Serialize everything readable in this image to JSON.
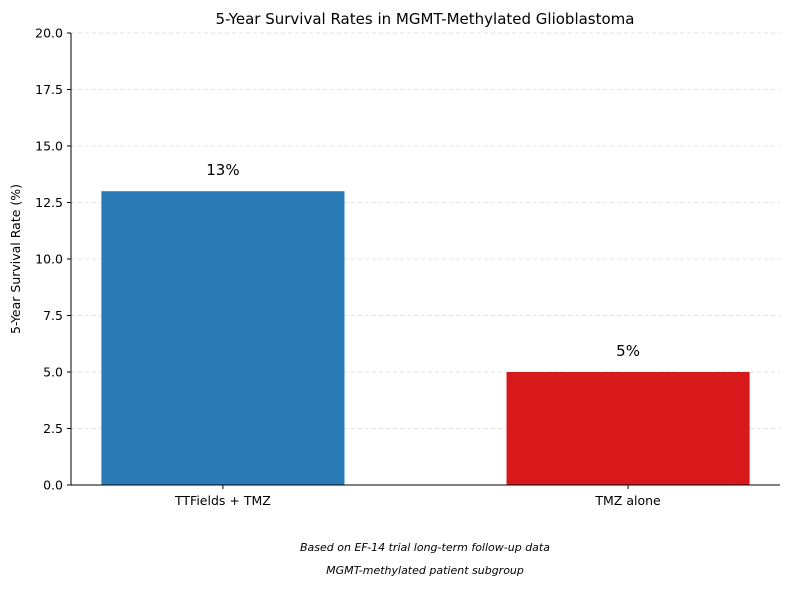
{
  "chart_data": {
    "type": "bar",
    "title": "5-Year Survival Rates in MGMT-Methylated Glioblastoma",
    "xlabel": "",
    "ylabel": "5-Year Survival Rate (%)",
    "categories": [
      "TTFields + TMZ",
      "TMZ alone"
    ],
    "values": [
      13,
      5
    ],
    "value_labels": [
      "13%",
      "5%"
    ],
    "colors": [
      "#2b7bb9",
      "#d7191c"
    ],
    "ylim": [
      0,
      20
    ],
    "yticks": [
      "0.0",
      "2.5",
      "5.0",
      "7.5",
      "10.0",
      "12.5",
      "15.0",
      "17.5",
      "20.0"
    ],
    "grid": "horizontal dashed",
    "legend": "none"
  },
  "footnotes": [
    "Based on EF-14 trial long-term follow-up data",
    "MGMT-methylated patient subgroup"
  ]
}
